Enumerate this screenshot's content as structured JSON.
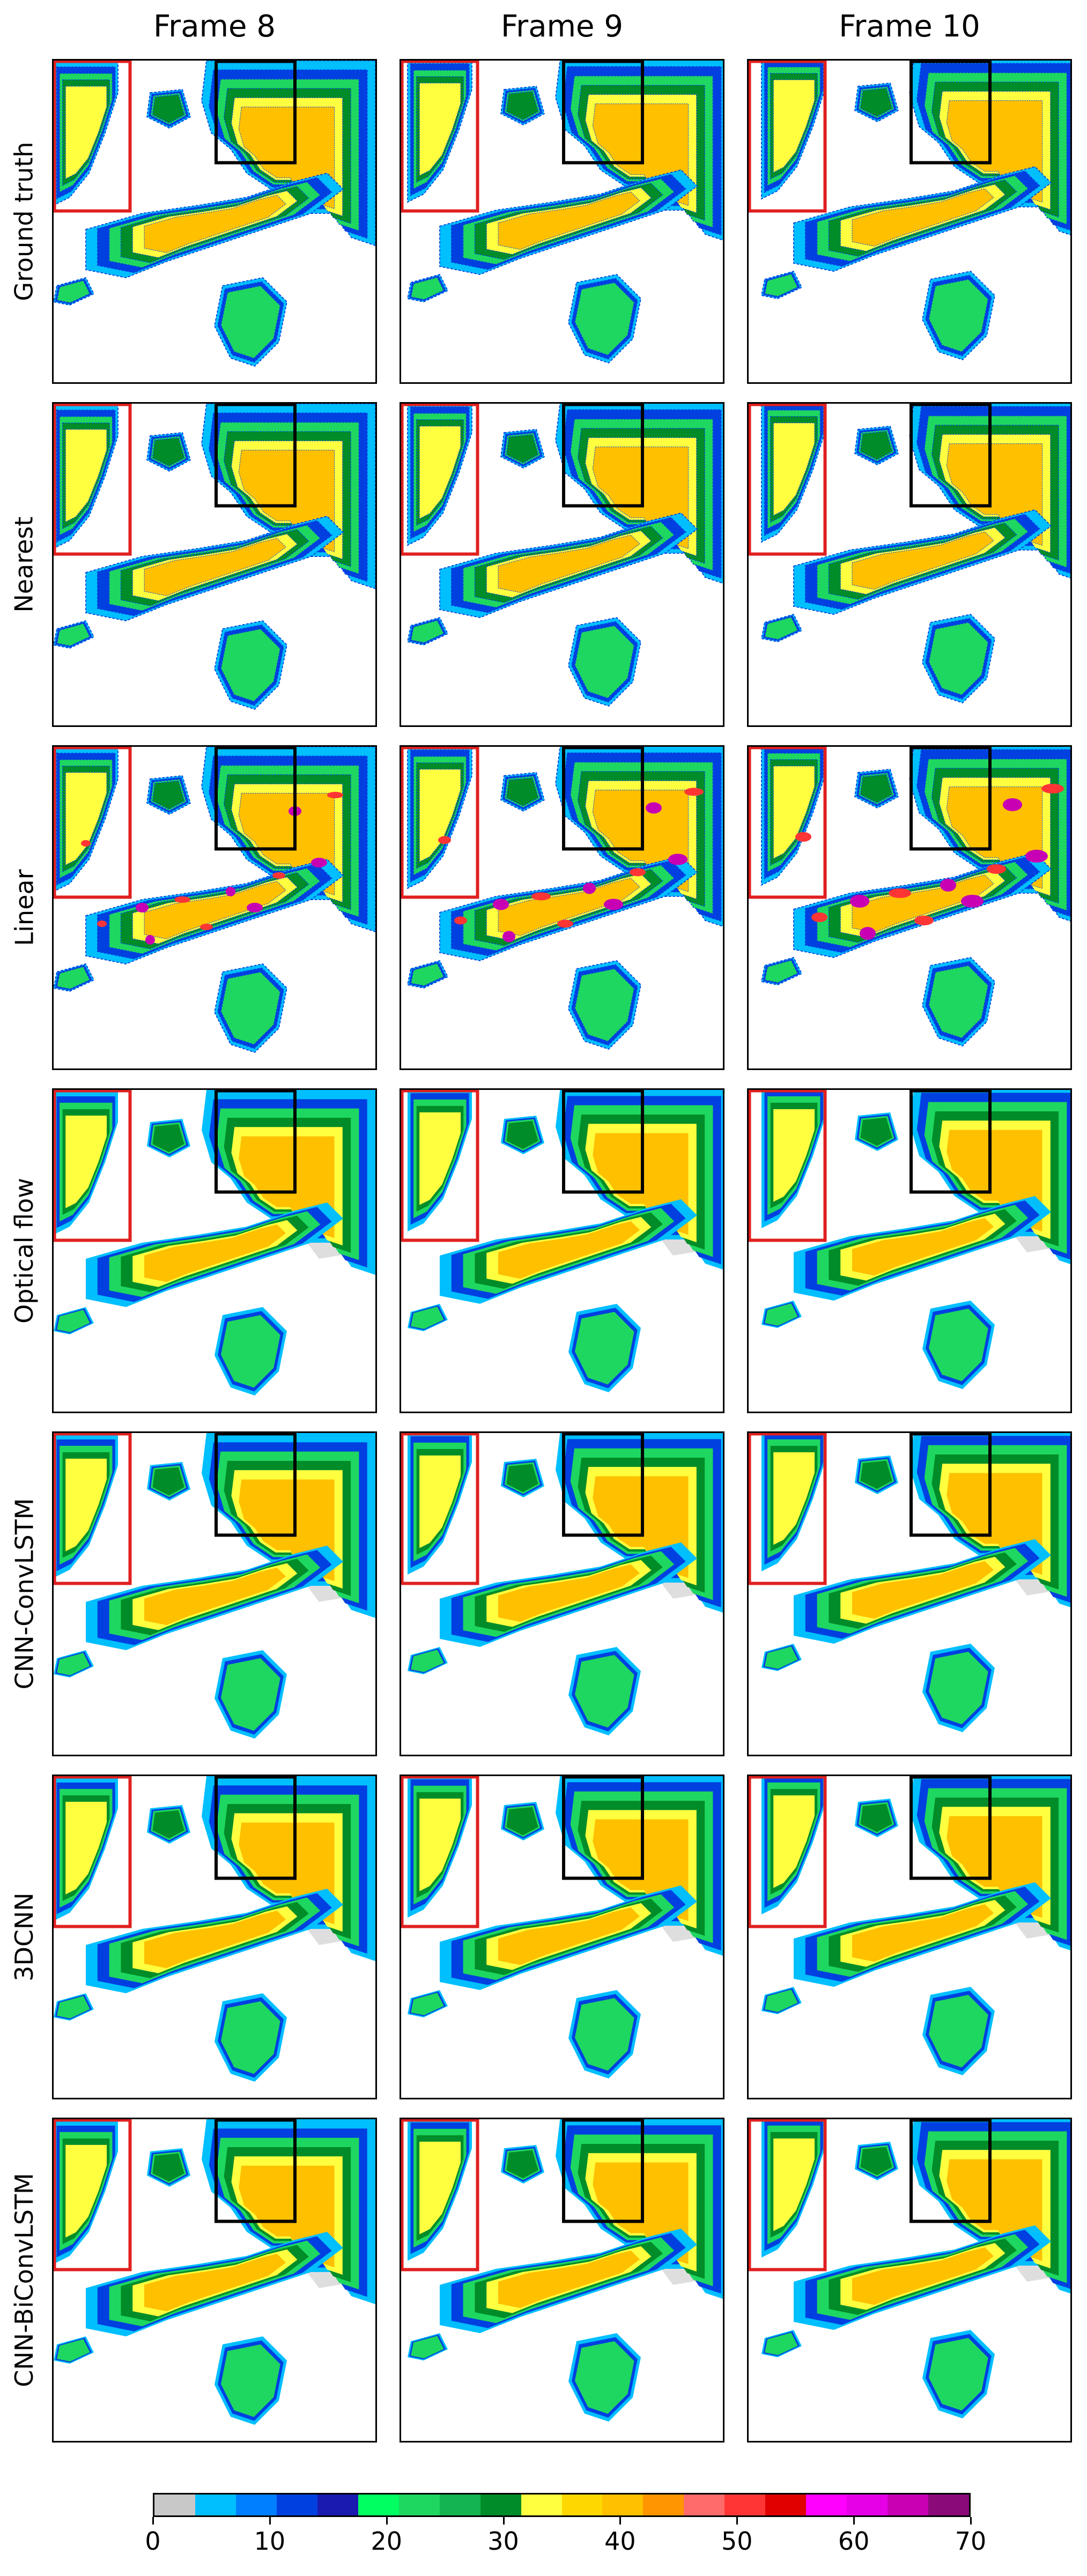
{
  "columns": [
    "Frame 8",
    "Frame 9",
    "Frame 10"
  ],
  "rows": [
    "Ground truth",
    "Nearest",
    "Linear",
    "Optical flow",
    "CNN-ConvLSTM",
    "3DCNN",
    "CNN-BiConvLSTM"
  ],
  "colorbar": {
    "colors": [
      "#c8c8c8",
      "#00bfff",
      "#007fff",
      "#0040e0",
      "#1a1ab0",
      "#00ff60",
      "#1ed760",
      "#14b450",
      "#008c28",
      "#ffff40",
      "#ffd700",
      "#ffc000",
      "#ff9500",
      "#ff6a6a",
      "#ff3535",
      "#e00000",
      "#ff00ff",
      "#e600e6",
      "#c800b4",
      "#8b0a7a"
    ],
    "min": 0,
    "max": 70,
    "ticks": [
      "0",
      "10",
      "20",
      "30",
      "40",
      "50",
      "60",
      "70"
    ]
  },
  "box_colors": {
    "red": "#e02020",
    "black": "#000000"
  }
}
